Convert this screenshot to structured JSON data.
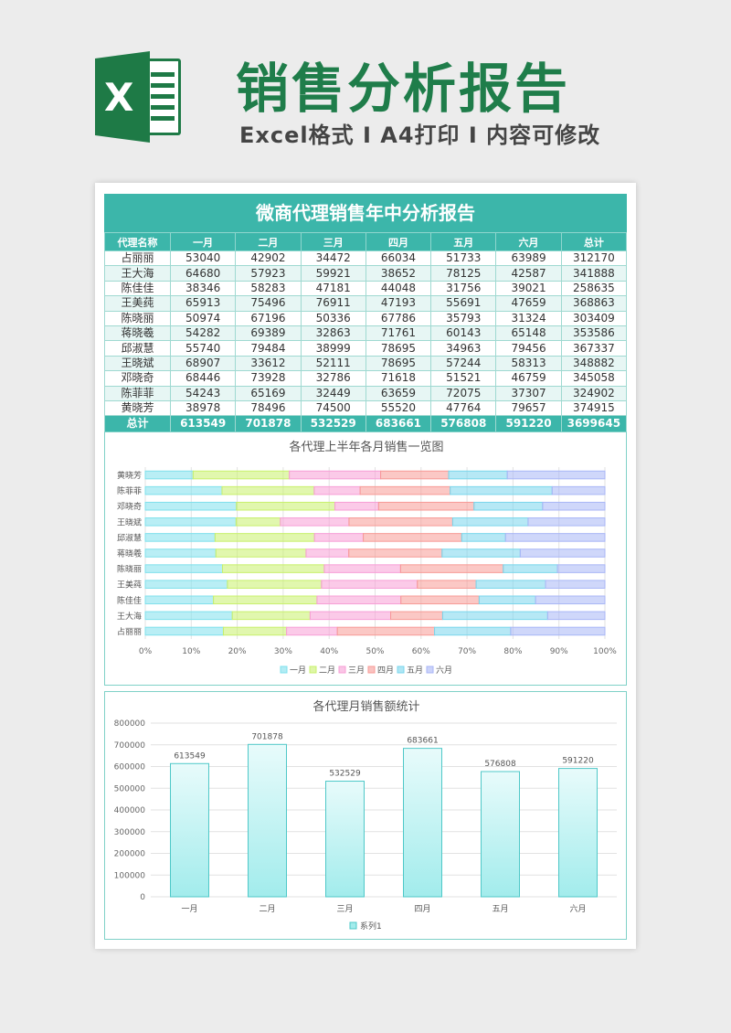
{
  "header": {
    "logo_letter": "X",
    "title": "销售分析报告",
    "subtitle": "Excel格式 I A4打印 I 内容可修改"
  },
  "colors": {
    "brand_green": "#1f7d4a",
    "teal": "#3cb6aa",
    "months": [
      "#7fe0ec",
      "#c8f06c",
      "#f79ed6",
      "#f79a96",
      "#7ad6ec",
      "#a8b6f6"
    ]
  },
  "report": {
    "title": "微商代理销售年中分析报告",
    "columns": [
      "代理名称",
      "一月",
      "二月",
      "三月",
      "四月",
      "五月",
      "六月",
      "总计"
    ],
    "rows": [
      [
        "占丽丽",
        "53040",
        "42902",
        "34472",
        "66034",
        "51733",
        "63989",
        "312170"
      ],
      [
        "王大海",
        "64680",
        "57923",
        "59921",
        "38652",
        "78125",
        "42587",
        "341888"
      ],
      [
        "陈佳佳",
        "38346",
        "58283",
        "47181",
        "44048",
        "31756",
        "39021",
        "258635"
      ],
      [
        "王美莼",
        "65913",
        "75496",
        "76911",
        "47193",
        "55691",
        "47659",
        "368863"
      ],
      [
        "陈晓丽",
        "50974",
        "67196",
        "50336",
        "67786",
        "35793",
        "31324",
        "303409"
      ],
      [
        "蒋晓羲",
        "54282",
        "69389",
        "32863",
        "71761",
        "60143",
        "65148",
        "353586"
      ],
      [
        "邱淑慧",
        "55740",
        "79484",
        "38999",
        "78695",
        "34963",
        "79456",
        "367337"
      ],
      [
        "王晓斌",
        "68907",
        "33612",
        "52111",
        "78695",
        "57244",
        "58313",
        "348882"
      ],
      [
        "邓晓奇",
        "68446",
        "73928",
        "32786",
        "71618",
        "51521",
        "46759",
        "345058"
      ],
      [
        "陈菲菲",
        "54243",
        "65169",
        "32449",
        "63659",
        "72075",
        "37307",
        "324902"
      ],
      [
        "黄晓芳",
        "38978",
        "78496",
        "74500",
        "55520",
        "47764",
        "79657",
        "374915"
      ]
    ],
    "total": [
      "总计",
      "613549",
      "701878",
      "532529",
      "683661",
      "576808",
      "591220",
      "3699645"
    ]
  },
  "chart_data": [
    {
      "type": "bar",
      "orientation": "horizontal",
      "stacked": "percent",
      "title": "各代理上半年各月销售一览图",
      "categories": [
        "占丽丽",
        "王大海",
        "陈佳佳",
        "王美莼",
        "陈晓丽",
        "蒋晓羲",
        "邱淑慧",
        "王晓斌",
        "邓晓奇",
        "陈菲菲",
        "黄晓芳"
      ],
      "series": [
        {
          "name": "一月",
          "values": [
            53040,
            64680,
            38346,
            65913,
            50974,
            54282,
            55740,
            68907,
            68446,
            54243,
            38978
          ]
        },
        {
          "name": "二月",
          "values": [
            42902,
            57923,
            58283,
            75496,
            67196,
            69389,
            79484,
            33612,
            73928,
            65169,
            78496
          ]
        },
        {
          "name": "三月",
          "values": [
            34472,
            59921,
            47181,
            76911,
            50336,
            32863,
            38999,
            52111,
            32786,
            32449,
            74500
          ]
        },
        {
          "name": "四月",
          "values": [
            66034,
            38652,
            44048,
            47193,
            67786,
            71761,
            78695,
            78695,
            71618,
            63659,
            55520
          ]
        },
        {
          "name": "五月",
          "values": [
            51733,
            78125,
            31756,
            55691,
            35793,
            60143,
            34963,
            57244,
            51521,
            72075,
            47764
          ]
        },
        {
          "name": "六月",
          "values": [
            63989,
            42587,
            39021,
            47659,
            31324,
            65148,
            79456,
            58313,
            46759,
            37307,
            79657
          ]
        }
      ],
      "x_ticks": [
        "0%",
        "10%",
        "20%",
        "30%",
        "40%",
        "50%",
        "60%",
        "70%",
        "80%",
        "90%",
        "100%"
      ],
      "xlim": [
        0,
        1
      ],
      "legend": "bottom",
      "grid": true
    },
    {
      "type": "bar",
      "title": "各代理月销售额统计",
      "categories": [
        "一月",
        "二月",
        "三月",
        "四月",
        "五月",
        "六月"
      ],
      "series": [
        {
          "name": "系列1",
          "values": [
            613549,
            701878,
            532529,
            683661,
            576808,
            591220
          ]
        }
      ],
      "y_ticks": [
        "0",
        "100000",
        "200000",
        "300000",
        "400000",
        "500000",
        "600000",
        "700000",
        "800000"
      ],
      "ylim": [
        0,
        800000
      ],
      "legend": "bottom",
      "grid": true
    }
  ]
}
